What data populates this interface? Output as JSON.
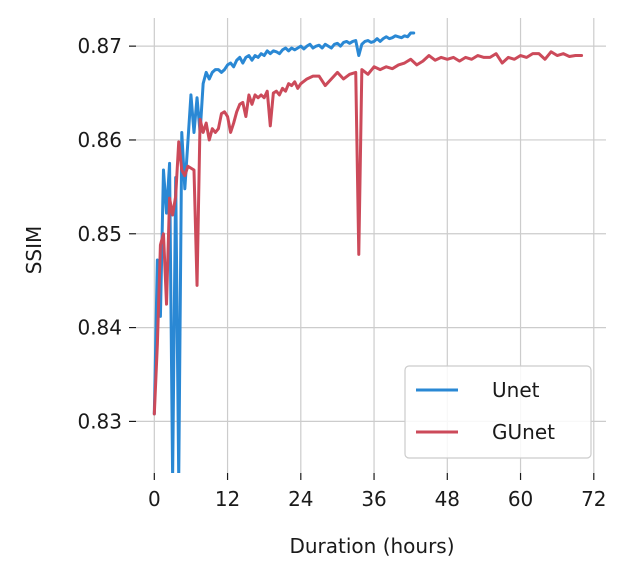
{
  "chart_data": {
    "type": "line",
    "title": "",
    "xlabel": "Duration (hours)",
    "ylabel": "SSIM",
    "xlim": [
      -3,
      74
    ],
    "ylim": [
      0.8245,
      0.873
    ],
    "xticks": [
      0,
      12,
      24,
      36,
      48,
      60,
      72
    ],
    "xtick_labels": [
      "0",
      "12",
      "24",
      "36",
      "48",
      "60",
      "72"
    ],
    "yticks": [
      0.83,
      0.84,
      0.85,
      0.86,
      0.87
    ],
    "ytick_labels": [
      "0.83",
      "0.84",
      "0.85",
      "0.86",
      "0.87"
    ],
    "grid": true,
    "legend": "lower-right",
    "series": [
      {
        "name": "Unet",
        "color": "#2a88d4",
        "x": [
          0,
          0.5,
          1.0,
          1.5,
          2.0,
          2.5,
          3.0,
          3.5,
          4.0,
          4.5,
          5.0,
          5.5,
          6.0,
          6.5,
          7.0,
          7.5,
          8.0,
          8.5,
          9.0,
          9.5,
          10.0,
          10.5,
          11.0,
          11.5,
          12.0,
          12.5,
          13.0,
          13.5,
          14.0,
          14.5,
          15.0,
          15.5,
          16.0,
          16.5,
          17.0,
          17.5,
          18.0,
          18.5,
          19.0,
          19.5,
          20.0,
          20.5,
          21.0,
          21.5,
          22.0,
          22.5,
          23.0,
          23.5,
          24.0,
          24.5,
          25.0,
          25.5,
          26.0,
          26.5,
          27.0,
          27.5,
          28.0,
          28.5,
          29.0,
          29.5,
          30.0,
          30.5,
          31.0,
          31.5,
          32.0,
          32.5,
          33.0,
          33.5,
          34.0,
          34.5,
          35.0,
          35.5,
          36.0,
          36.5,
          37.0,
          37.5,
          38.0,
          38.5,
          39.0,
          39.5,
          40.0,
          40.5,
          41.0,
          41.5,
          42.0,
          42.5
        ],
        "y": [
          0.8308,
          0.8472,
          0.8412,
          0.8568,
          0.8522,
          0.8575,
          0.824,
          0.856,
          0.824,
          0.8608,
          0.8548,
          0.8598,
          0.8648,
          0.8608,
          0.8645,
          0.8608,
          0.866,
          0.8672,
          0.8665,
          0.8672,
          0.8675,
          0.8675,
          0.8672,
          0.8675,
          0.868,
          0.8682,
          0.8678,
          0.8685,
          0.8688,
          0.8682,
          0.8688,
          0.869,
          0.8685,
          0.869,
          0.8688,
          0.8692,
          0.869,
          0.8695,
          0.8692,
          0.8695,
          0.8694,
          0.8692,
          0.8696,
          0.8698,
          0.8695,
          0.8698,
          0.8696,
          0.8698,
          0.87,
          0.8697,
          0.87,
          0.8702,
          0.8698,
          0.87,
          0.8701,
          0.8698,
          0.8702,
          0.87,
          0.8698,
          0.8702,
          0.8703,
          0.87,
          0.8704,
          0.8705,
          0.8703,
          0.8705,
          0.8706,
          0.869,
          0.8702,
          0.8705,
          0.8706,
          0.8704,
          0.8705,
          0.8708,
          0.8705,
          0.8708,
          0.871,
          0.8708,
          0.8709,
          0.8711,
          0.871,
          0.8709,
          0.8711,
          0.871,
          0.8714,
          0.8714
        ]
      },
      {
        "name": "GUnet",
        "color": "#cc4a5a",
        "x": [
          0,
          0.5,
          1.0,
          1.5,
          2.0,
          2.5,
          3.0,
          3.5,
          4.0,
          4.5,
          5.0,
          5.5,
          6.0,
          6.5,
          7.0,
          7.5,
          8.0,
          8.5,
          9.0,
          9.5,
          10.0,
          10.5,
          11.0,
          11.5,
          12.0,
          12.5,
          13.0,
          13.5,
          14.0,
          14.5,
          15.0,
          15.5,
          16.0,
          16.5,
          17.0,
          17.5,
          18.0,
          18.5,
          19.0,
          19.5,
          20.0,
          20.5,
          21.0,
          21.5,
          22.0,
          22.5,
          23.0,
          23.5,
          24.0,
          25.0,
          26.0,
          27.0,
          28.0,
          29.0,
          30.0,
          31.0,
          32.0,
          33.0,
          33.5,
          34.0,
          35.0,
          36.0,
          37.0,
          38.0,
          39.0,
          40.0,
          41.0,
          42.0,
          43.0,
          44.0,
          45.0,
          46.0,
          47.0,
          48.0,
          49.0,
          50.0,
          51.0,
          52.0,
          53.0,
          54.0,
          55.0,
          56.0,
          57.0,
          58.0,
          59.0,
          60.0,
          61.0,
          62.0,
          63.0,
          64.0,
          65.0,
          66.0,
          67.0,
          68.0,
          69.0,
          70.0
        ],
        "y": [
          0.8308,
          0.8382,
          0.8488,
          0.85,
          0.8425,
          0.8538,
          0.852,
          0.854,
          0.8598,
          0.8568,
          0.8562,
          0.8572,
          0.857,
          0.8568,
          0.8445,
          0.8622,
          0.8608,
          0.8618,
          0.86,
          0.8612,
          0.8608,
          0.8612,
          0.8628,
          0.863,
          0.8625,
          0.8608,
          0.8618,
          0.863,
          0.8638,
          0.864,
          0.8625,
          0.8648,
          0.8638,
          0.8648,
          0.8645,
          0.8648,
          0.8645,
          0.8652,
          0.8615,
          0.865,
          0.8652,
          0.8648,
          0.8655,
          0.8652,
          0.866,
          0.8658,
          0.8662,
          0.8655,
          0.866,
          0.8665,
          0.8668,
          0.8668,
          0.8658,
          0.8665,
          0.8672,
          0.8665,
          0.867,
          0.8672,
          0.8478,
          0.8675,
          0.867,
          0.8678,
          0.8675,
          0.8678,
          0.8676,
          0.868,
          0.8682,
          0.8686,
          0.868,
          0.8684,
          0.869,
          0.8685,
          0.8688,
          0.8686,
          0.8688,
          0.8684,
          0.8688,
          0.8686,
          0.869,
          0.8688,
          0.8688,
          0.8692,
          0.8682,
          0.8688,
          0.8686,
          0.869,
          0.8688,
          0.8692,
          0.8692,
          0.8686,
          0.8694,
          0.869,
          0.8692,
          0.8689,
          0.869,
          0.869
        ]
      }
    ]
  }
}
